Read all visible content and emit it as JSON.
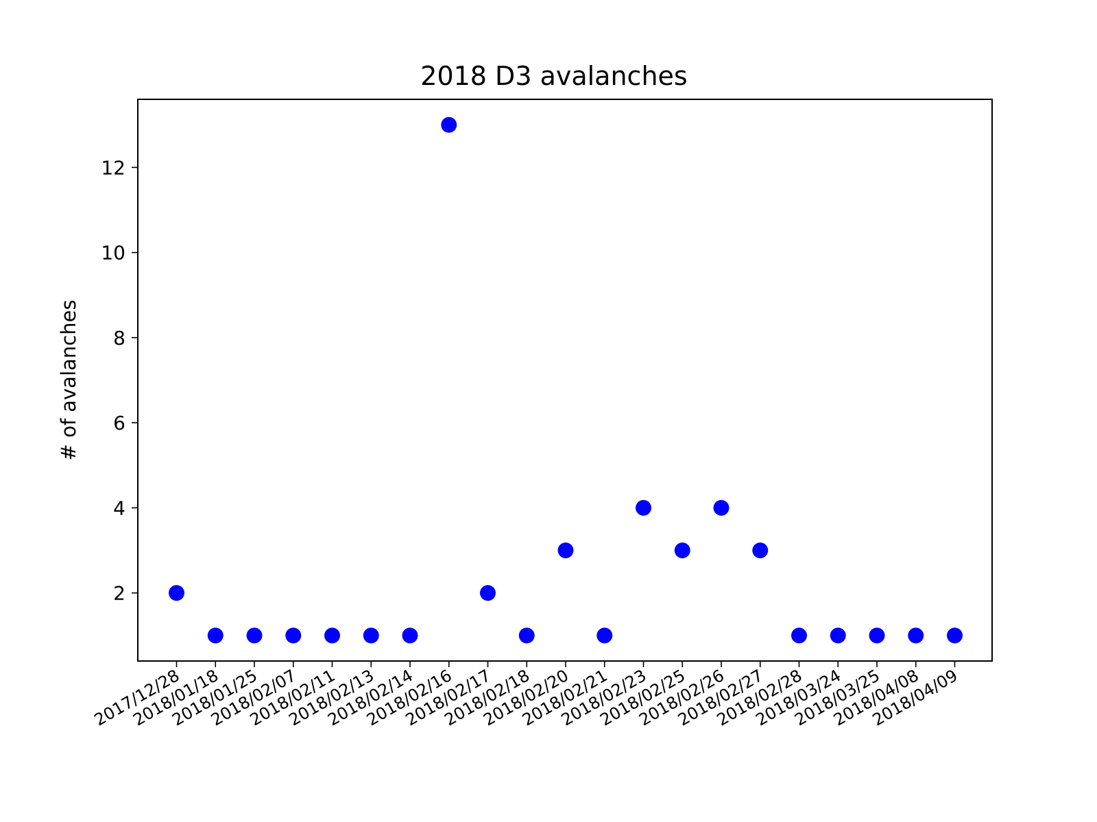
{
  "chart_data": {
    "type": "scatter",
    "title": "2018 D3 avalanches",
    "xlabel": "",
    "ylabel": "# of avalanches",
    "categories": [
      "2017/12/28",
      "2018/01/18",
      "2018/01/25",
      "2018/02/07",
      "2018/02/11",
      "2018/02/13",
      "2018/02/14",
      "2018/02/16",
      "2018/02/17",
      "2018/02/18",
      "2018/02/20",
      "2018/02/21",
      "2018/02/23",
      "2018/02/25",
      "2018/02/26",
      "2018/02/27",
      "2018/02/28",
      "2018/03/24",
      "2018/03/25",
      "2018/04/08",
      "2018/04/09"
    ],
    "values": [
      2,
      1,
      1,
      1,
      1,
      1,
      1,
      13,
      2,
      1,
      3,
      1,
      4,
      3,
      4,
      3,
      1,
      1,
      1,
      1,
      1
    ],
    "ylim": [
      0.4,
      13.6
    ],
    "yticks": [
      2,
      4,
      6,
      8,
      10,
      12
    ],
    "marker_color": "#0000ff",
    "grid": false,
    "legend": "none"
  }
}
